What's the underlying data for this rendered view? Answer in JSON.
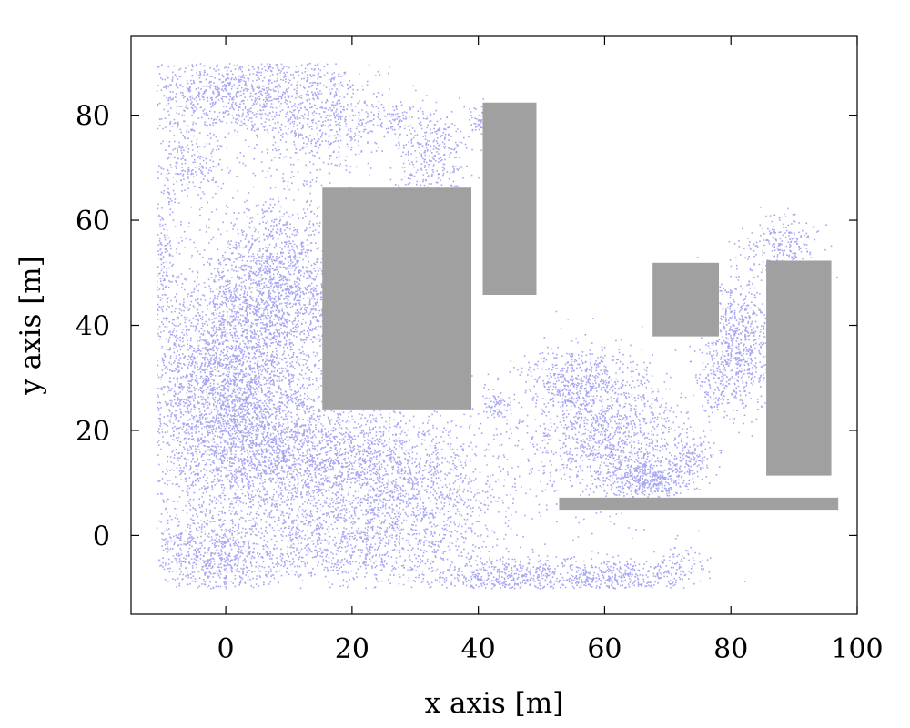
{
  "chart_data": {
    "type": "scatter",
    "title": "",
    "xlabel": "x axis [m]",
    "ylabel": "y axis [m]",
    "xlim": [
      -15,
      100
    ],
    "ylim": [
      -15,
      95
    ],
    "xticks": [
      0,
      20,
      40,
      60,
      80,
      100
    ],
    "yticks": [
      0,
      20,
      40,
      60,
      80
    ],
    "grid": false,
    "legend": "none",
    "colors": {
      "points": "#a6a6f2",
      "obstacles": "#a0a0a0",
      "frame": "#000000"
    },
    "obstacles": [
      {
        "x0": 15.3,
        "x1": 38.9,
        "y0": 24.0,
        "y1": 66.2
      },
      {
        "x0": 40.7,
        "x1": 49.2,
        "y0": 45.8,
        "y1": 82.4
      },
      {
        "x0": 67.6,
        "x1": 78.1,
        "y0": 37.9,
        "y1": 51.9
      },
      {
        "x0": 85.6,
        "x1": 95.9,
        "y0": 11.4,
        "y1": 52.3
      },
      {
        "x0": 52.8,
        "x1": 97.0,
        "y0": 4.9,
        "y1": 7.2
      }
    ],
    "point_clusters": [
      {
        "cx": 0,
        "cy": 85,
        "sx": 8,
        "sy": 4,
        "n": 900
      },
      {
        "cx": 14,
        "cy": 80,
        "sx": 6,
        "sy": 6,
        "n": 700
      },
      {
        "cx": -6,
        "cy": 72,
        "sx": 3,
        "sy": 4,
        "n": 250
      },
      {
        "cx": 33,
        "cy": 72,
        "sx": 3,
        "sy": 5,
        "n": 350
      },
      {
        "cx": 26,
        "cy": 79,
        "sx": 3,
        "sy": 2,
        "n": 120
      },
      {
        "cx": 40,
        "cy": 79,
        "sx": 1,
        "sy": 1.5,
        "n": 50
      },
      {
        "cx": -10,
        "cy": 52,
        "sx": 1.5,
        "sy": 8,
        "n": 200
      },
      {
        "cx": 8,
        "cy": 47,
        "sx": 6,
        "sy": 8,
        "n": 1800
      },
      {
        "cx": 0,
        "cy": 30,
        "sx": 7,
        "sy": 10,
        "n": 2500
      },
      {
        "cx": 5,
        "cy": 15,
        "sx": 9,
        "sy": 8,
        "n": 1800
      },
      {
        "cx": 22,
        "cy": 13,
        "sx": 9,
        "sy": 8,
        "n": 1600
      },
      {
        "cx": 32,
        "cy": 5,
        "sx": 8,
        "sy": 7,
        "n": 700
      },
      {
        "cx": -2,
        "cy": -4,
        "sx": 6,
        "sy": 4,
        "n": 800
      },
      {
        "cx": 18,
        "cy": -3,
        "sx": 8,
        "sy": 4,
        "n": 500
      },
      {
        "cx": 45,
        "cy": -8,
        "sx": 7,
        "sy": 2,
        "n": 500
      },
      {
        "cx": 62,
        "cy": -8,
        "sx": 6,
        "sy": 2,
        "n": 450
      },
      {
        "cx": 43,
        "cy": 25,
        "sx": 1.5,
        "sy": 1.5,
        "n": 80
      },
      {
        "cx": 60,
        "cy": 20,
        "sx": 6,
        "sy": 7,
        "n": 1300
      },
      {
        "cx": 55,
        "cy": 30,
        "sx": 4,
        "sy": 3,
        "n": 300
      },
      {
        "cx": 67,
        "cy": 11,
        "sx": 3,
        "sy": 2,
        "n": 400
      },
      {
        "cx": 74,
        "cy": 15,
        "sx": 2,
        "sy": 2.5,
        "n": 150
      },
      {
        "cx": 81,
        "cy": 37,
        "sx": 3,
        "sy": 6,
        "n": 700
      },
      {
        "cx": 88,
        "cy": 55,
        "sx": 3,
        "sy": 3,
        "n": 250
      },
      {
        "cx": 78,
        "cy": 28,
        "sx": 2,
        "sy": 3,
        "n": 120
      },
      {
        "cx": 72,
        "cy": -5,
        "sx": 2,
        "sy": 2,
        "n": 60
      }
    ]
  }
}
